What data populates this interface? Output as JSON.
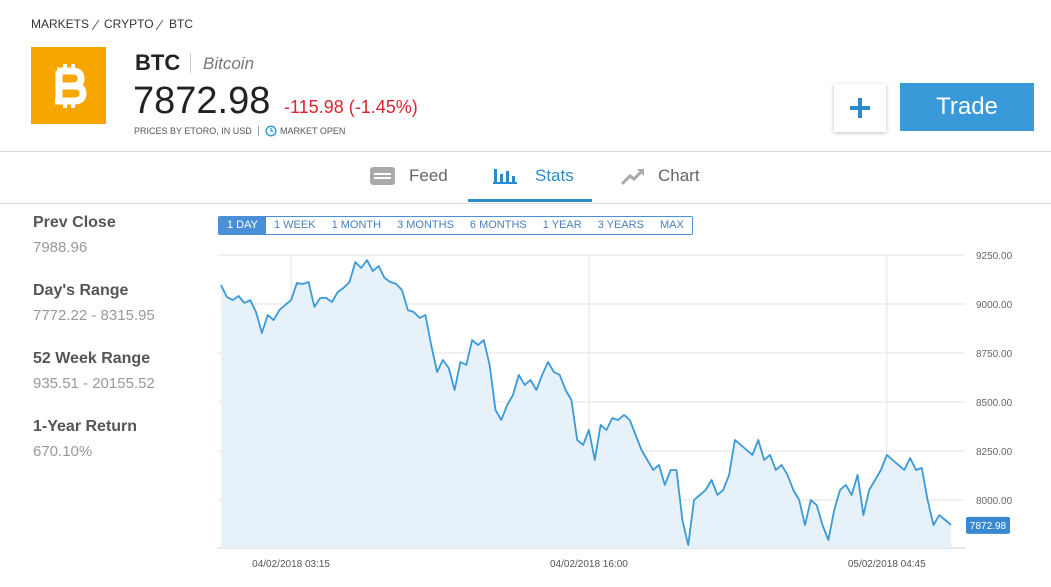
{
  "breadcrumb": [
    "MARKETS",
    "CRYPTO",
    "BTC"
  ],
  "header": {
    "ticker": "BTC",
    "name": "Bitcoin",
    "price": "7872.98",
    "change": "-115.98 (-1.45%)",
    "source": "PRICES BY ETORO, IN USD",
    "status": "MARKET OPEN",
    "trade_button": "Trade"
  },
  "tabs": [
    "Feed",
    "Stats",
    "Chart"
  ],
  "stats": [
    {
      "label": "Prev Close",
      "value": "7988.96"
    },
    {
      "label": "Day's Range",
      "value": "7772.22 - 8315.95"
    },
    {
      "label": "52 Week Range",
      "value": "935.51 - 20155.52"
    },
    {
      "label": "1-Year Return",
      "value": "670.10%"
    }
  ],
  "ranges": [
    "1 DAY",
    "1 WEEK",
    "1 MONTH",
    "3 MONTHS",
    "6 MONTHS",
    "1 YEAR",
    "3 YEARS",
    "MAX"
  ],
  "chart_data": {
    "type": "line",
    "categories": [
      null,
      null,
      null,
      null,
      null,
      null,
      null,
      null,
      null,
      null,
      null,
      null,
      "04/02/2018 03:15",
      null,
      null,
      null,
      null,
      null,
      null,
      null,
      null,
      null,
      null,
      null,
      null,
      null,
      null,
      null,
      null,
      null,
      null,
      null,
      null,
      null,
      null,
      null,
      null,
      null,
      null,
      null,
      null,
      null,
      null,
      null,
      null,
      null,
      null,
      null,
      null,
      null,
      null,
      null,
      null,
      null,
      null,
      null,
      null,
      null,
      null,
      null,
      null,
      null,
      null,
      "04/02/2018 16:00",
      null,
      null,
      null,
      null,
      null,
      null,
      null,
      null,
      null,
      null,
      null,
      null,
      null,
      null,
      null,
      null,
      null,
      null,
      null,
      null,
      null,
      null,
      null,
      null,
      null,
      null,
      null,
      null,
      null,
      null,
      null,
      null,
      null,
      null,
      null,
      null,
      null,
      null,
      null,
      null,
      null,
      null,
      null,
      null,
      null,
      null,
      null,
      null,
      null,
      null,
      "05/02/2018 04:45",
      null,
      null,
      null,
      null,
      null,
      null,
      null,
      null,
      null,
      null,
      null
    ],
    "values": [
      9097,
      9036,
      9020,
      9041,
      9005,
      9020,
      8959,
      8852,
      8944,
      8918,
      8969,
      8995,
      9020,
      9107,
      9102,
      9112,
      8985,
      9031,
      9031,
      9010,
      9061,
      9082,
      9112,
      9214,
      9184,
      9224,
      9168,
      9194,
      9133,
      9112,
      9102,
      9071,
      8969,
      8959,
      8929,
      8944,
      8791,
      8653,
      8714,
      8673,
      8561,
      8704,
      8689,
      8816,
      8791,
      8816,
      8689,
      8459,
      8408,
      8485,
      8536,
      8638,
      8587,
      8612,
      8561,
      8638,
      8704,
      8653,
      8638,
      8561,
      8510,
      8306,
      8281,
      8357,
      8204,
      8383,
      8357,
      8418,
      8408,
      8434,
      8408,
      8332,
      8255,
      8204,
      8153,
      8179,
      8077,
      8153,
      8153,
      7898,
      7770,
      8000,
      8026,
      8051,
      8102,
      8026,
      8051,
      8128,
      8306,
      8281,
      8255,
      8230,
      8306,
      8204,
      8230,
      8153,
      8179,
      8128,
      8051,
      8000,
      7872,
      8000,
      7974,
      7872,
      7796,
      7949,
      8051,
      8077,
      8026,
      8128,
      7923,
      8051,
      8102,
      8153,
      8230,
      8204,
      8179,
      8153,
      8214,
      8153,
      8163,
      8000,
      7872,
      7923,
      7898,
      7872.98
    ],
    "color": "#3a9ad9",
    "fill": "#e6f1f9",
    "ylim": [
      7755,
      9250
    ],
    "yticks": [
      {
        "value": 8000,
        "label": "8000.00"
      },
      {
        "value": 8250,
        "label": "8250.00"
      },
      {
        "value": 8500,
        "label": "8500.00"
      },
      {
        "value": 8750,
        "label": "8750.00"
      },
      {
        "value": 9000,
        "label": "9000.00"
      },
      {
        "value": 9250,
        "label": "9250.00"
      }
    ],
    "grid": true
  }
}
